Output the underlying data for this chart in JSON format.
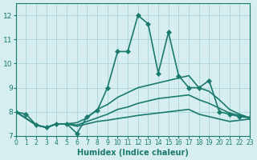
{
  "bg_color": "#d6eef0",
  "grid_color": "#b0d8dc",
  "line_color": "#1a7a6e",
  "xlabel": "Humidex (Indice chaleur)",
  "xlim": [
    0,
    23
  ],
  "ylim": [
    7,
    12.5
  ],
  "yticks": [
    7,
    8,
    9,
    10,
    11,
    12
  ],
  "xticks": [
    0,
    1,
    2,
    3,
    4,
    5,
    6,
    7,
    8,
    9,
    10,
    11,
    12,
    13,
    14,
    15,
    16,
    17,
    18,
    19,
    20,
    21,
    22,
    23
  ],
  "lines": [
    {
      "x": [
        0,
        1,
        2,
        3,
        4,
        5,
        6,
        7,
        8,
        9,
        10,
        11,
        12,
        13,
        14,
        15,
        16,
        17,
        18,
        19,
        20,
        21,
        22,
        23
      ],
      "y": [
        8.0,
        7.9,
        7.45,
        7.35,
        7.5,
        7.5,
        7.1,
        7.8,
        8.05,
        9.0,
        10.5,
        10.5,
        12.0,
        11.65,
        9.6,
        11.3,
        9.5,
        9.0,
        9.0,
        9.3,
        8.0,
        7.9,
        7.8,
        7.75
      ],
      "marker": "D",
      "markersize": 3,
      "linewidth": 1.2
    },
    {
      "x": [
        0,
        2,
        3,
        4,
        5,
        6,
        7,
        8,
        9,
        10,
        11,
        12,
        13,
        14,
        15,
        16,
        17,
        18,
        19,
        20,
        21,
        22,
        23
      ],
      "y": [
        8.0,
        7.45,
        7.35,
        7.5,
        7.5,
        7.55,
        7.75,
        8.1,
        8.3,
        8.6,
        8.8,
        9.0,
        9.1,
        9.2,
        9.3,
        9.4,
        9.5,
        9.0,
        8.85,
        8.5,
        8.1,
        7.9,
        7.75
      ],
      "marker": null,
      "markersize": 0,
      "linewidth": 1.2
    },
    {
      "x": [
        0,
        2,
        3,
        4,
        5,
        6,
        7,
        8,
        9,
        10,
        11,
        12,
        13,
        14,
        15,
        16,
        17,
        18,
        19,
        20,
        21,
        22,
        23
      ],
      "y": [
        8.0,
        7.45,
        7.35,
        7.5,
        7.5,
        7.45,
        7.6,
        7.75,
        7.9,
        8.1,
        8.2,
        8.35,
        8.45,
        8.55,
        8.6,
        8.65,
        8.7,
        8.5,
        8.35,
        8.15,
        7.95,
        7.85,
        7.75
      ],
      "marker": null,
      "markersize": 0,
      "linewidth": 1.2
    },
    {
      "x": [
        0,
        2,
        3,
        4,
        5,
        6,
        7,
        8,
        9,
        10,
        11,
        12,
        13,
        14,
        15,
        16,
        17,
        18,
        19,
        20,
        21,
        22,
        23
      ],
      "y": [
        8.0,
        7.45,
        7.35,
        7.5,
        7.5,
        7.4,
        7.5,
        7.6,
        7.65,
        7.72,
        7.78,
        7.85,
        7.9,
        7.95,
        8.0,
        8.05,
        8.1,
        7.9,
        7.8,
        7.7,
        7.6,
        7.65,
        7.7
      ],
      "marker": null,
      "markersize": 0,
      "linewidth": 1.2
    }
  ]
}
